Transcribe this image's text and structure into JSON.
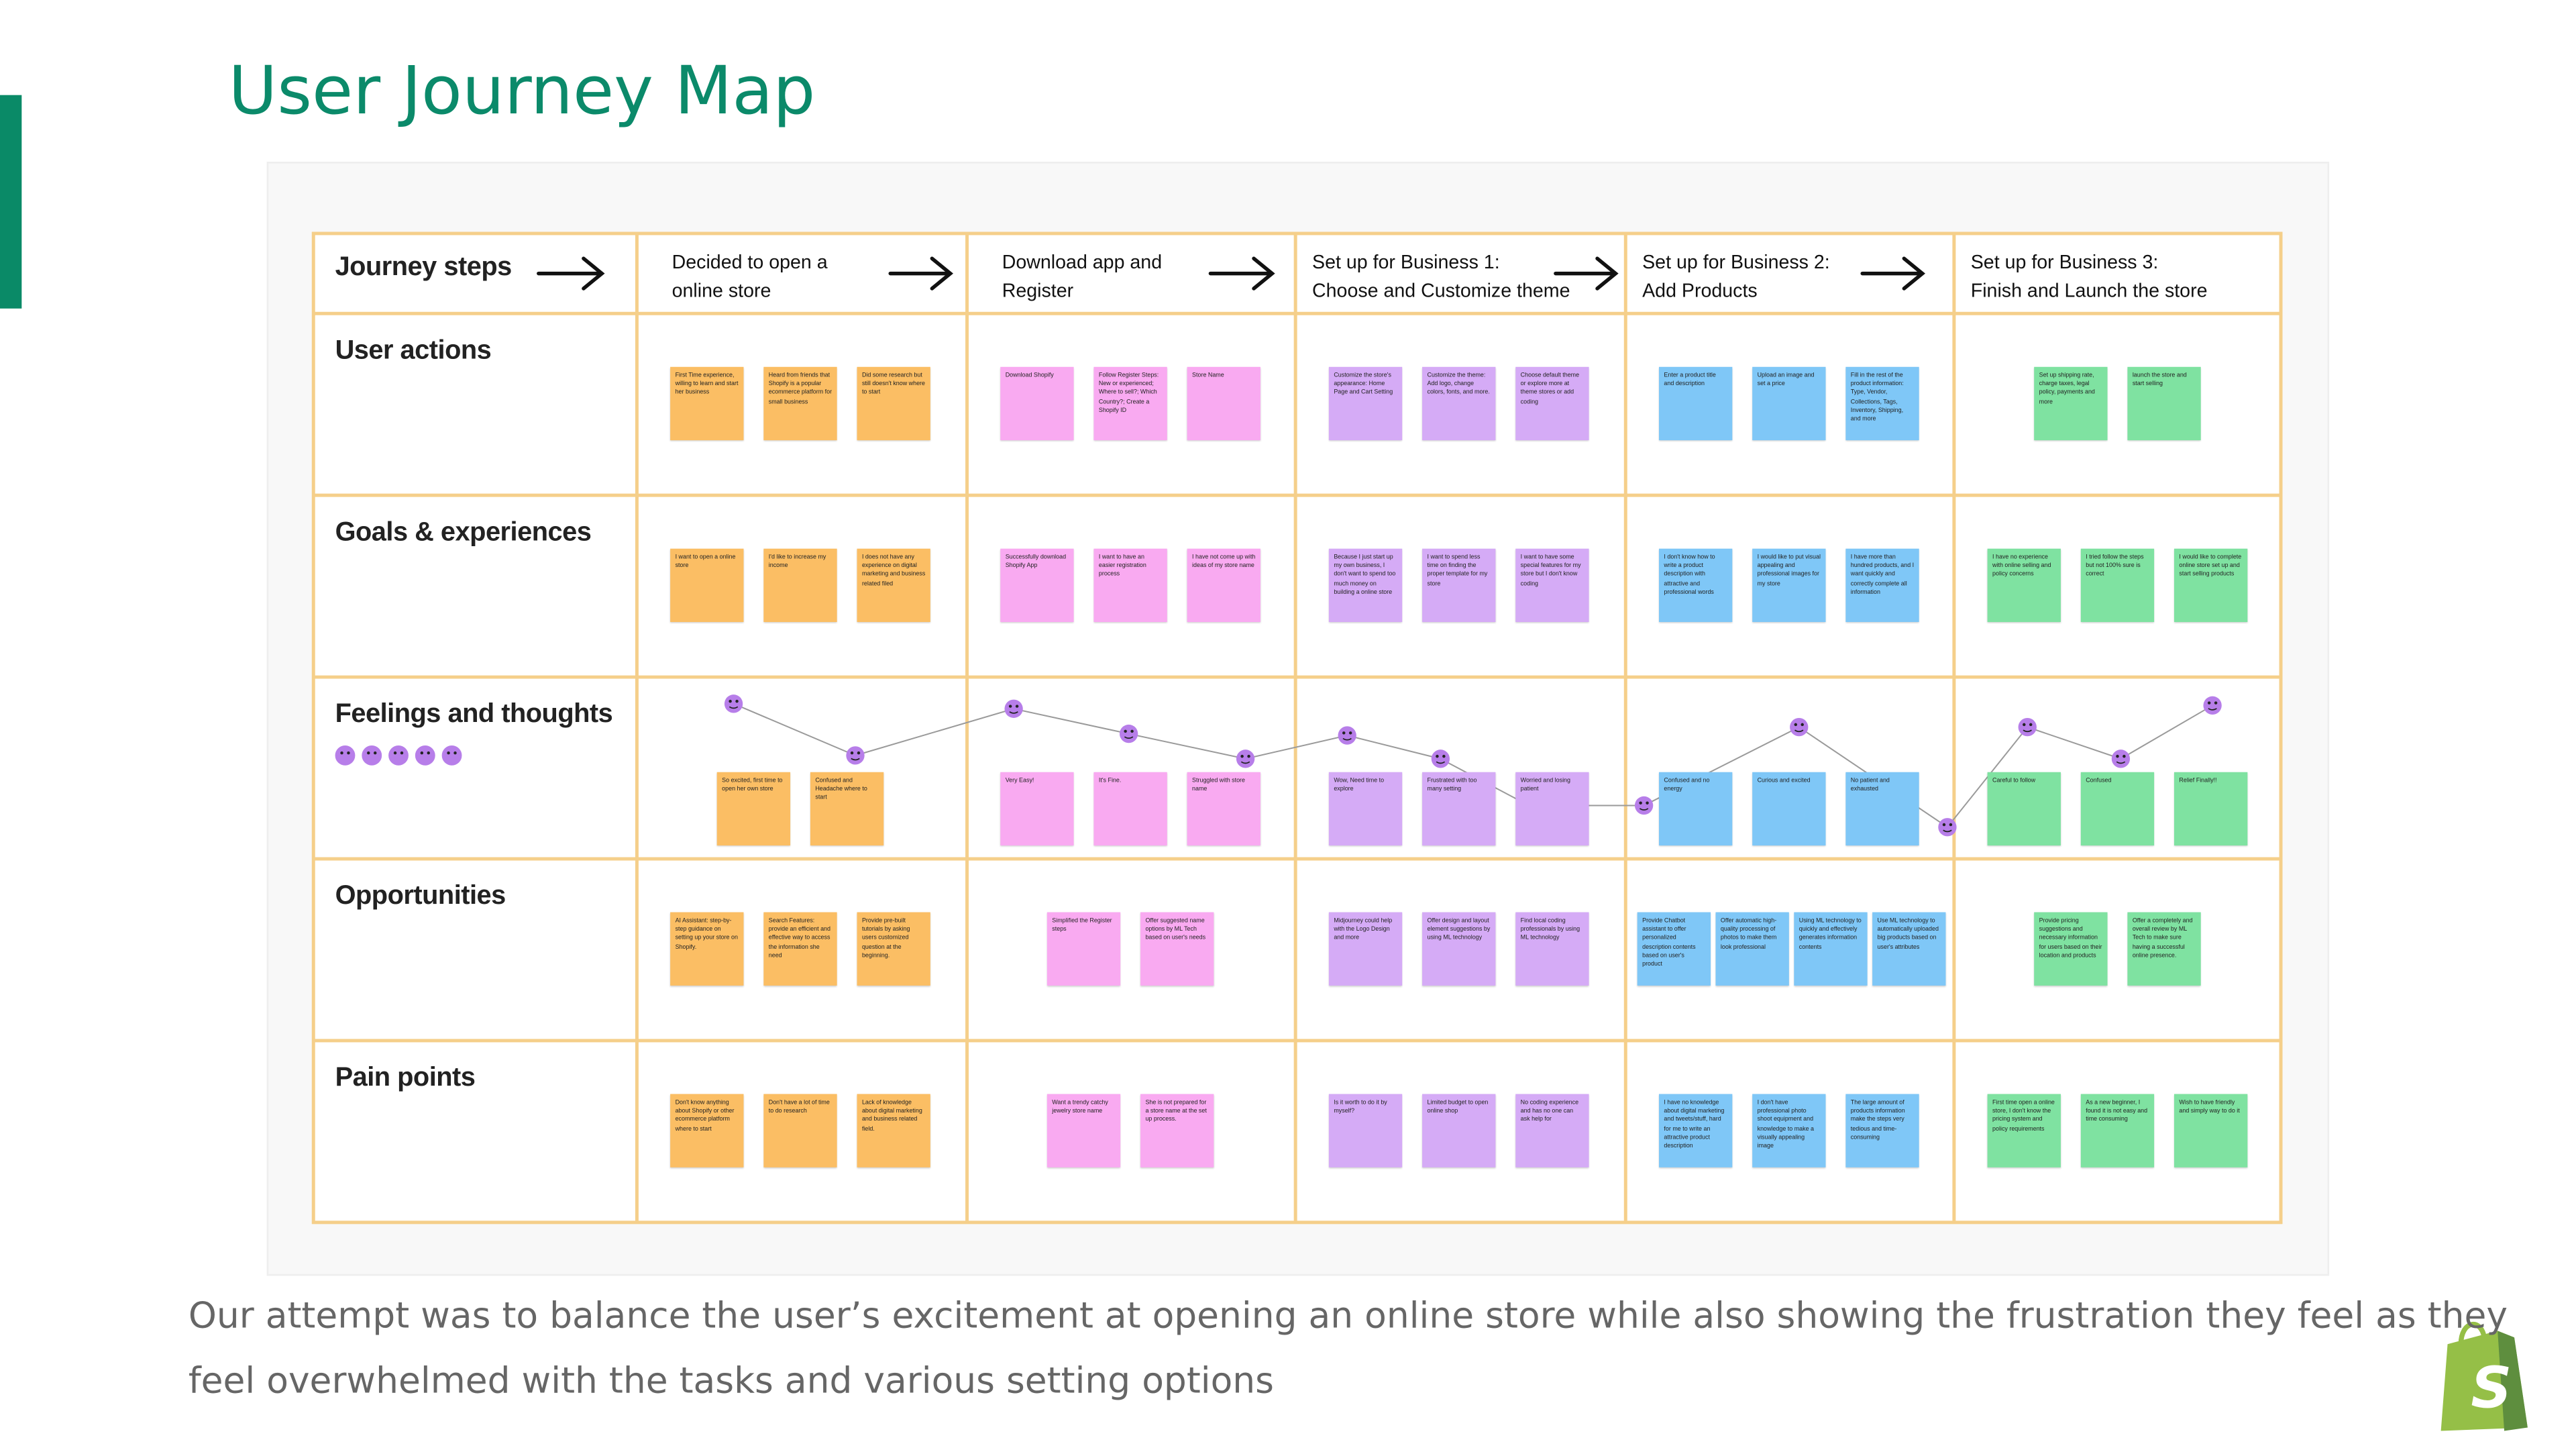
{
  "header": {
    "title": "User Journey Map"
  },
  "board": {
    "columns": [
      [
        "Journey steps"
      ],
      [
        "Decided to open a",
        "online store"
      ],
      [
        "Download app and",
        "Register"
      ],
      [
        "Set up for Business 1:",
        "Choose and Customize theme"
      ],
      [
        "Set up for Business 2:",
        "Add Products"
      ],
      [
        "Set up for Business 3:",
        "Finish and Launch the store"
      ]
    ],
    "rows": [
      {
        "label": "User actions",
        "cells": [
          [
            "First Time experience, willing to learn and start her business",
            "Heard from friends that Shopify is a popular ecommerce platform for small business",
            "Did some research but still doesn't know where to start"
          ],
          [
            "Download Shopify",
            "Follow Register Steps: New or experienced; Where to sell?; Which Country?; Create a Shopify ID",
            "Store Name"
          ],
          [
            "Customize the store's appearance: Home Page and Cart Setting",
            "Customize the theme: Add logo, change colors, fonts, and more.",
            "Choose default theme or explore more at theme stores or add coding"
          ],
          [
            "Enter a product title and description",
            "Upload an image and set a price",
            "Fill in the rest of the product information: Type, Vendor, Collections, Tags, Inventory, Shipping, and more"
          ],
          [
            "Set up shipping rate, charge taxes, legal policy, payments and more",
            "launch the store and start selling"
          ]
        ]
      },
      {
        "label": "Goals & experiences",
        "cells": [
          [
            "I want to open a online store",
            "I'd like to increase my income",
            "I does not have any experience on digital marketing and business related filed"
          ],
          [
            "Successfully download Shopify App",
            "I want to have an easier registration process",
            "I have not come up with ideas of my store name"
          ],
          [
            "Because I just start up my own business, I don't want to spend too much money on building a online store",
            "I want to spend less time on finding the proper template for my store",
            "I want to have some special features for my store but I don't know coding"
          ],
          [
            "I don't know how to write a product description with attractive and professional words",
            "I would like to put visual appealing and professional images for my store",
            "I have more than hundred products, and I want quickly and correctly complete all information"
          ],
          [
            "I have no experience with online selling and policy concerns",
            "I tried follow the steps but not 100% sure is correct",
            "I would like to complete online store set up and start selling products"
          ]
        ]
      },
      {
        "label": "Feelings and thoughts",
        "cells": [
          [
            "So excited, first time to open her own store",
            "Confused and Headache where to start"
          ],
          [
            "Very Easy!",
            "It's Fine.",
            "Struggled with store name"
          ],
          [
            "Wow, Need time to explore",
            "Frustrated with too many setting",
            "Worried and losing patient"
          ],
          [
            "Confused and no energy",
            "Curious and excited",
            "No patient and exhausted"
          ],
          [
            "Careful to follow",
            "Confused",
            "Relief Finally!!"
          ]
        ]
      },
      {
        "label": "Opportunities",
        "cells": [
          [
            "AI Assistant: step-by-step guidance on setting up your store on Shopify.",
            "Search Features: provide an efficient and effective way to access the information she need",
            "Provide pre-built tutorials by asking users customized question at the beginning."
          ],
          [
            "Simplified the Register steps",
            "Offer suggested name options by ML Tech based on user's needs"
          ],
          [
            "Midjourney could help with the Logo Design and more",
            "Offer design and layout element suggestions by using ML technology",
            "Find local coding professionals by using ML technology"
          ],
          [
            "Provide Chatbot assistant to offer personalized description contents based on user's product",
            "Offer automatic high-quality processing of photos to make them look professional",
            "Using ML technology to quickly and effectively generates information contents",
            "Use ML technology to automatically uploaded big products based on user's attributes"
          ],
          [
            "Provide pricing suggestions and necessary information for users based on their location and products",
            "Offer a completely and overall review by ML Tech to make sure having a successful online presence."
          ]
        ]
      },
      {
        "label": "Pain points",
        "cells": [
          [
            "Don't know anything about Shopify or other ecommerce platform where to start",
            "Don't have a lot of time to do research",
            "Lack of knowledge about digital marketing and business related field."
          ],
          [
            "Want a trendy catchy jewelry store name",
            "She is not prepared for a store name at the set up process."
          ],
          [
            "Is it worth to do it by myself?",
            "Limited budget to open online shop",
            "No coding experience and has no one can ask help for"
          ],
          [
            "I have no knowledge about digital marketing and tweets/stuff, hard for me to write an attractive product description",
            "I don't have professional photo shoot equipment and knowledge to make a visually appealing image",
            "The large amount of products information make the steps very tedious and time-consuming"
          ],
          [
            "First time open a online store, I don't know the pricing system and policy requirements",
            "As a new beginner, I found it is not easy and time consuming",
            "Wish to have friendly and simply way to do it"
          ]
        ]
      }
    ]
  },
  "caption": [
    "Our attempt was to balance the user’s excitement at opening an online store while also showing the frustration they feel as they",
    "feel overwhelmed with the tasks and various setting options"
  ]
}
